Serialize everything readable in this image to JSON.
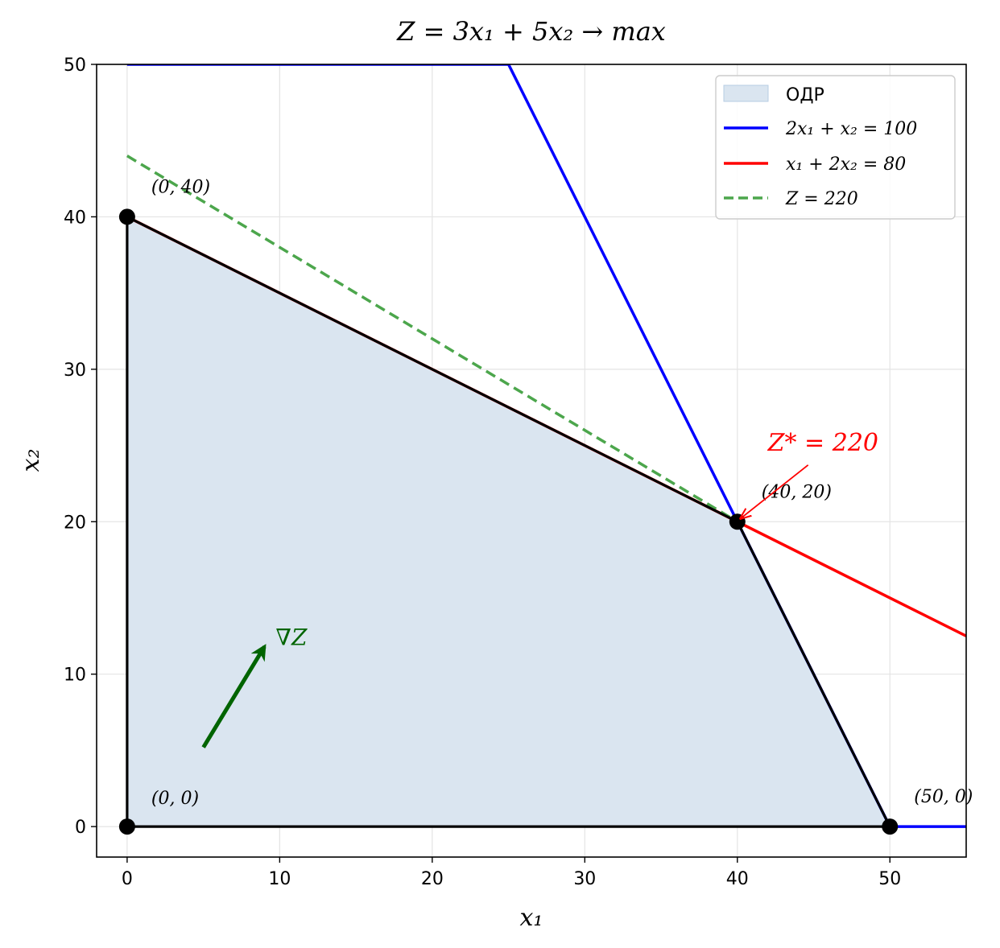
{
  "chart_data": {
    "type": "line",
    "title": "Z = 3x₁ + 5x₂ → max",
    "xlabel": "x₁",
    "ylabel": "x₂",
    "xlim": [
      -2,
      55
    ],
    "ylim": [
      -2,
      50
    ],
    "xticks": [
      0,
      10,
      20,
      30,
      40,
      50
    ],
    "yticks": [
      0,
      10,
      20,
      30,
      40,
      50
    ],
    "grid": true,
    "legend_position": "top-right",
    "feasible_region": {
      "name": "ОДР",
      "color": "#dae5f0",
      "vertices": [
        [
          0,
          0
        ],
        [
          0,
          40
        ],
        [
          40,
          20
        ],
        [
          50,
          0
        ]
      ]
    },
    "series": [
      {
        "name": "2x₁ + x₂ = 100",
        "color": "#0000ff",
        "style": "solid",
        "points": [
          [
            0,
            50
          ],
          [
            25,
            50
          ],
          [
            40,
            20
          ],
          [
            50,
            0
          ],
          [
            55,
            0
          ]
        ]
      },
      {
        "name": "x₁ + 2x₂ = 80",
        "color": "#ff0000",
        "style": "solid",
        "points": [
          [
            0,
            40
          ],
          [
            55,
            12.5
          ]
        ]
      },
      {
        "name": "Z = 220",
        "color": "#4ca64c",
        "style": "dashed",
        "points": [
          [
            0,
            44
          ],
          [
            40,
            20
          ]
        ]
      }
    ],
    "boundary": {
      "color": "#000000",
      "points": [
        [
          0,
          0
        ],
        [
          0,
          40
        ],
        [
          40,
          20
        ],
        [
          50,
          0
        ],
        [
          0,
          0
        ]
      ]
    },
    "vertices": [
      {
        "x": 0,
        "y": 0,
        "label": "(0, 0)"
      },
      {
        "x": 0,
        "y": 40,
        "label": "(0, 40)"
      },
      {
        "x": 40,
        "y": 20,
        "label": "(40, 20)"
      },
      {
        "x": 50,
        "y": 0,
        "label": "(50, 0)"
      }
    ],
    "gradient": {
      "from": [
        5,
        5.2
      ],
      "to": [
        9,
        11.8
      ],
      "label": "∇Z",
      "color": "#006400"
    },
    "optimum": {
      "x": 40,
      "y": 20,
      "label": "Z* = 220",
      "text_at": [
        42,
        25.2
      ],
      "color": "#ff0000"
    }
  }
}
